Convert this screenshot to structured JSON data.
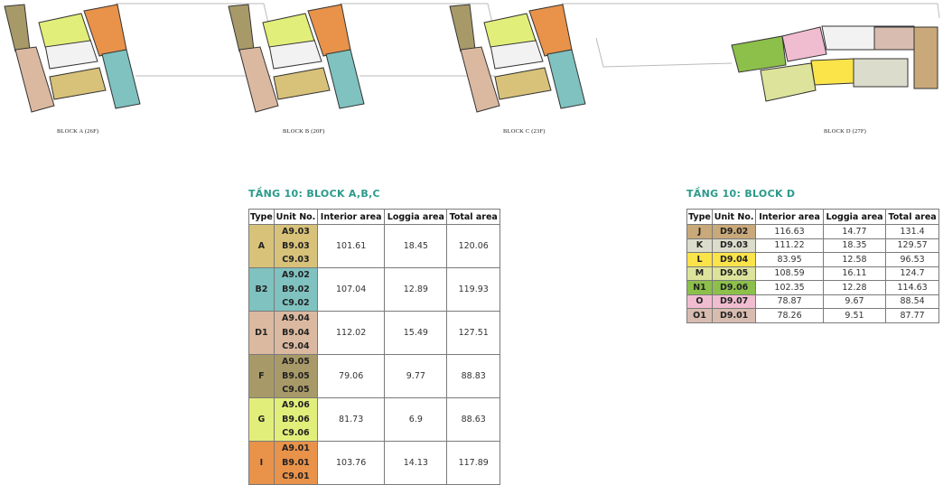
{
  "blocks": [
    {
      "label": "BLOCK A (26F)"
    },
    {
      "label": "BLOCK B (20F)"
    },
    {
      "label": "BLOCK C (23F)"
    },
    {
      "label": "BLOCK D (27F)"
    }
  ],
  "table_abc": {
    "title": "TẦNG 10: BLOCK A,B,C",
    "headers": [
      "Type",
      "Unit No.",
      "Interior area",
      "Loggia area",
      "Total area"
    ],
    "rows": [
      {
        "type": "A",
        "color": "#d8c27a",
        "units": [
          "A9.03",
          "B9.03",
          "C9.03"
        ],
        "interior": "101.61",
        "loggia": "18.45",
        "total": "120.06"
      },
      {
        "type": "B2",
        "color": "#7fc2c0",
        "units": [
          "A9.02",
          "B9.02",
          "C9.02"
        ],
        "interior": "107.04",
        "loggia": "12.89",
        "total": "119.93"
      },
      {
        "type": "D1",
        "color": "#dbb9a0",
        "units": [
          "A9.04",
          "B9.04",
          "C9.04"
        ],
        "interior": "112.02",
        "loggia": "15.49",
        "total": "127.51"
      },
      {
        "type": "F",
        "color": "#a89a68",
        "units": [
          "A9.05",
          "B9.05",
          "C9.05"
        ],
        "interior": "79.06",
        "loggia": "9.77",
        "total": "88.83"
      },
      {
        "type": "G",
        "color": "#e2ee7a",
        "units": [
          "A9.06",
          "B9.06",
          "C9.06"
        ],
        "interior": "81.73",
        "loggia": "6.9",
        "total": "88.63"
      },
      {
        "type": "I",
        "color": "#e8924a",
        "units": [
          "A9.01",
          "B9.01",
          "C9.01"
        ],
        "interior": "103.76",
        "loggia": "14.13",
        "total": "117.89"
      }
    ]
  },
  "table_d": {
    "title": "TẦNG 10: BLOCK D",
    "headers": [
      "Type",
      "Unit No.",
      "Interior area",
      "Loggia area",
      "Total area"
    ],
    "rows": [
      {
        "type": "J",
        "color": "#c9a97a",
        "unit": "D9.02",
        "interior": "116.63",
        "loggia": "14.77",
        "total": "131.4"
      },
      {
        "type": "K",
        "color": "#dcdccc",
        "unit": "D9.03",
        "interior": "111.22",
        "loggia": "18.35",
        "total": "129.57"
      },
      {
        "type": "L",
        "color": "#fbe34a",
        "unit": "D9.04",
        "interior": "83.95",
        "loggia": "12.58",
        "total": "96.53"
      },
      {
        "type": "M",
        "color": "#dde39a",
        "unit": "D9.05",
        "interior": "108.59",
        "loggia": "16.11",
        "total": "124.7"
      },
      {
        "type": "N1",
        "color": "#8cc04a",
        "unit": "D9.06",
        "interior": "102.35",
        "loggia": "12.28",
        "total": "114.63"
      },
      {
        "type": "O",
        "color": "#f0bcd0",
        "unit": "D9.07",
        "interior": "78.87",
        "loggia": "9.67",
        "total": "88.54"
      },
      {
        "type": "O1",
        "color": "#d8bcb0",
        "unit": "D9.01",
        "interior": "78.26",
        "loggia": "9.51",
        "total": "87.77"
      }
    ]
  }
}
